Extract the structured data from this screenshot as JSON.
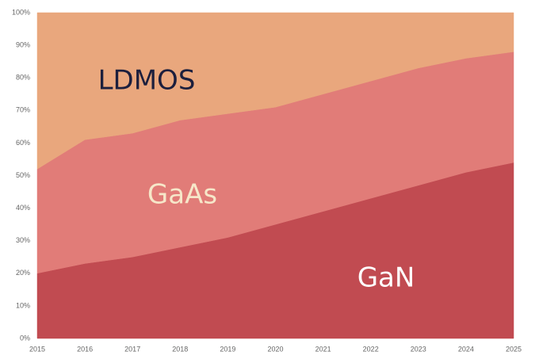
{
  "chart_data": {
    "type": "stacked-area",
    "categories": [
      "2015",
      "2016",
      "2017",
      "2018",
      "2019",
      "2020",
      "2021",
      "2022",
      "2023",
      "2024",
      "2025"
    ],
    "series": [
      {
        "name": "GaN",
        "color": "#c14b51",
        "label_color": "#ffffff",
        "values": [
          20,
          23,
          25,
          28,
          31,
          35,
          39,
          43,
          47,
          51,
          54
        ]
      },
      {
        "name": "GaAs",
        "color": "#e17c78",
        "label_color": "#f6e7c9",
        "values": [
          32,
          38,
          38,
          39,
          38,
          36,
          36,
          36,
          36,
          35,
          34
        ]
      },
      {
        "name": "LDMOS",
        "color": "#e9a77d",
        "label_color": "#1c1f3d",
        "values": [
          48,
          39,
          37,
          33,
          31,
          29,
          25,
          21,
          17,
          14,
          12
        ]
      }
    ],
    "ylim": [
      0,
      100
    ],
    "yticks": [
      {
        "value": 0,
        "label": "0%"
      },
      {
        "value": 10,
        "label": "10%"
      },
      {
        "value": 20,
        "label": "20%"
      },
      {
        "value": 30,
        "label": "30%"
      },
      {
        "value": 40,
        "label": "40%"
      },
      {
        "value": 50,
        "label": "50%"
      },
      {
        "value": 60,
        "label": "60%"
      },
      {
        "value": 70,
        "label": "70%"
      },
      {
        "value": 80,
        "label": "80%"
      },
      {
        "value": 90,
        "label": "90%"
      },
      {
        "value": 100,
        "label": "100%"
      }
    ]
  }
}
